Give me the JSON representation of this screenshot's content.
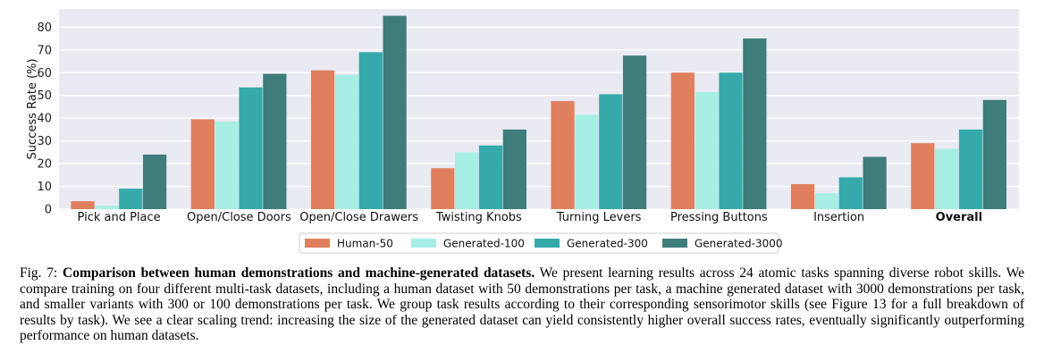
{
  "chart_data": {
    "type": "bar",
    "title": "",
    "xlabel": "",
    "ylabel": "Success Rate (%)",
    "ylim": [
      0,
      88
    ],
    "yticks": [
      0,
      10,
      20,
      30,
      40,
      50,
      60,
      70,
      80
    ],
    "grid": true,
    "legend_position": "bottom-center",
    "categories": [
      "Pick and Place",
      "Open/Close Doors",
      "Open/Close Drawers",
      "Twisting Knobs",
      "Turning Levers",
      "Pressing Buttons",
      "Insertion",
      "Overall"
    ],
    "bold_categories": [
      "Overall"
    ],
    "series": [
      {
        "name": "Human-50",
        "color": "#e07f5e",
        "values": [
          3.5,
          39.5,
          61,
          18,
          47.5,
          60,
          11,
          29
        ]
      },
      {
        "name": "Generated-100",
        "color": "#a9eee4",
        "values": [
          1.5,
          38.5,
          59,
          25,
          41.5,
          51.5,
          7,
          26.5
        ]
      },
      {
        "name": "Generated-300",
        "color": "#36aaaa",
        "values": [
          9,
          53.5,
          69,
          28,
          50.5,
          60,
          14,
          35
        ]
      },
      {
        "name": "Generated-3000",
        "color": "#3e7d7b",
        "values": [
          24,
          59.5,
          85,
          35,
          67.5,
          75,
          23,
          48
        ]
      }
    ]
  },
  "caption": {
    "label": "Fig. 7:",
    "bold_title": "Comparison between human demonstrations and machine-generated datasets.",
    "body": "We present learning results across 24 atomic tasks spanning diverse robot skills. We compare training on four different multi-task datasets, including a human dataset with 50 demonstrations per task, a machine generated dataset with 3000 demonstrations per task, and smaller variants with 300 or 100 demonstrations per task. We group task results according to their corresponding sensorimotor skills (see  Figure 13 for a full breakdown of results by task). We see a clear scaling trend: increasing the size of the generated dataset can yield consistently higher overall success rates, eventually significantly outperforming performance on human datasets."
  },
  "colors": {
    "plot_background": "#eaeaf2",
    "grid": "#ffffff"
  }
}
